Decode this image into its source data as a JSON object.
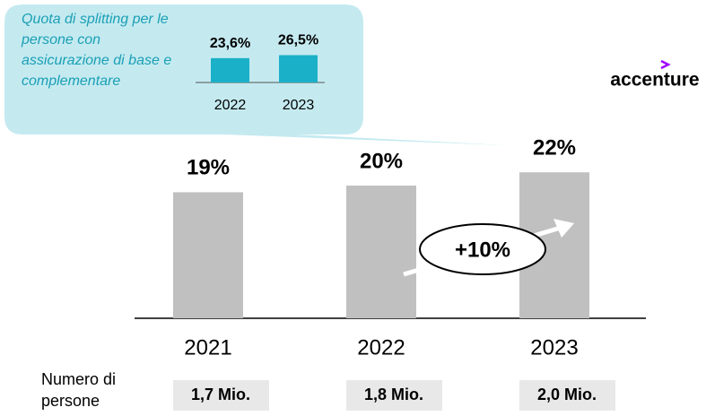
{
  "chart_data": [
    {
      "type": "bar",
      "categories": [
        "2021",
        "2022",
        "2023"
      ],
      "values": [
        19,
        20,
        22
      ],
      "value_labels": [
        "19%",
        "20%",
        "22%"
      ],
      "color": "#c0c0c0",
      "annotation": "+10%",
      "row_label": "Numero di persone",
      "row_values": [
        "1,7 Mio.",
        "1,8 Mio.",
        "2,0 Mio."
      ]
    },
    {
      "type": "bar",
      "title": "Quota di splitting per le persone con assicurazione di base e complementare",
      "categories": [
        "2022",
        "2023"
      ],
      "values": [
        23.6,
        26.5
      ],
      "value_labels": [
        "23,6%",
        "26,5%"
      ],
      "color": "#1ab0c8"
    }
  ],
  "logo": "accenture"
}
